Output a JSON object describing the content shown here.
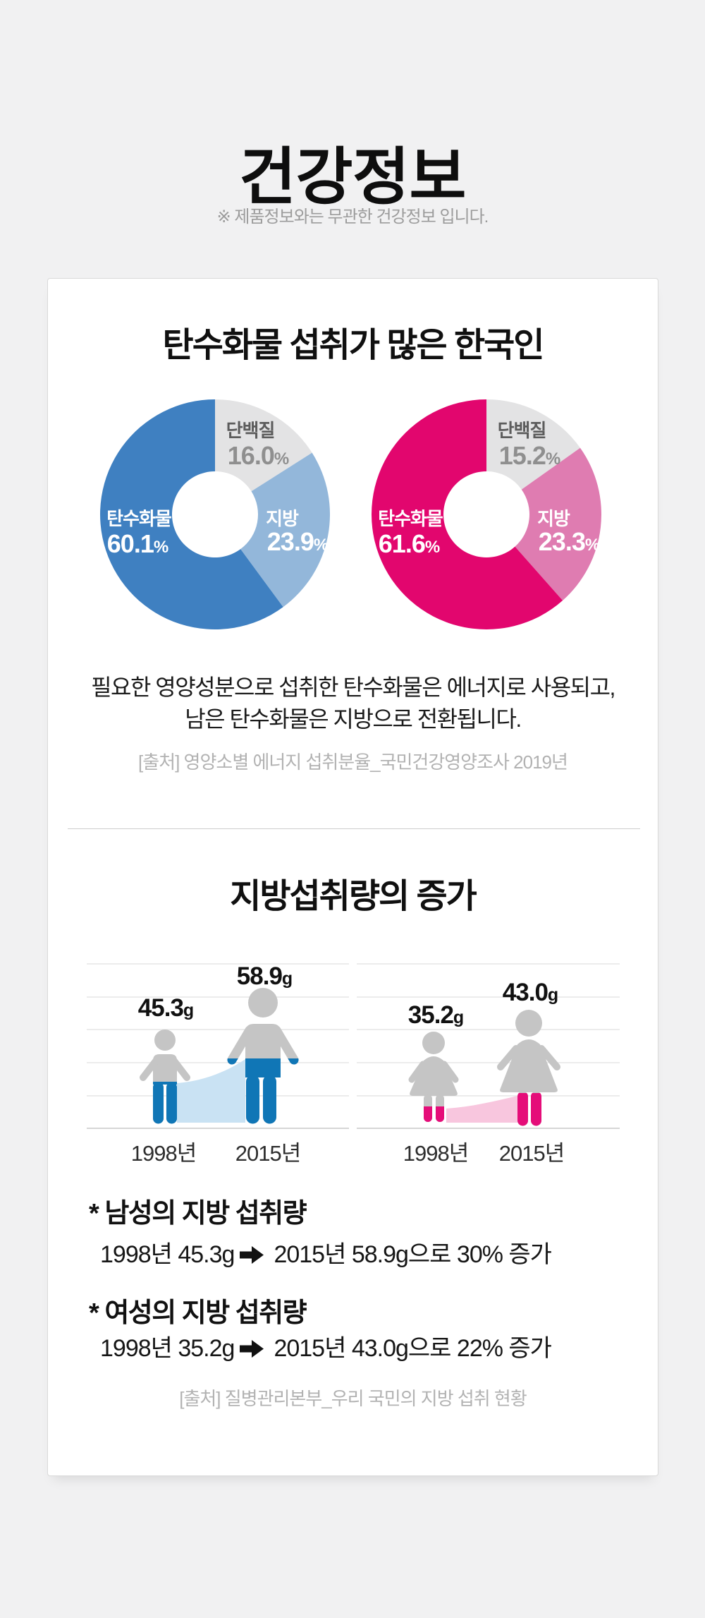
{
  "page": {
    "title": "건강정보",
    "disclaimer": "※ 제품정보와는 무관한 건강정보 입니다."
  },
  "section1": {
    "title": "탄수화물 섭취가 많은 한국인",
    "desc1": "필요한 영양성분으로 섭취한 탄수화물은 에너지로 사용되고,",
    "desc2": "남은 탄수화물은 지방으로 전환됩니다.",
    "source": "[출처] 영양소별 에너지 섭취분율_국민건강영양조사 2019년"
  },
  "section2": {
    "title": "지방섭취량의 증가",
    "notes": [
      {
        "title": "* 남성의 지방 섭취량",
        "from": "1998년 45.3g",
        "to": "2015년 58.9g으로 30% 증가"
      },
      {
        "title": "* 여성의 지방 섭취량",
        "from": "1998년 35.2g",
        "to": "2015년 43.0g으로 22% 증가"
      }
    ],
    "source": "[출처] 질병관리본부_우리 국민의 지방 섭취 현황"
  },
  "chart_data": [
    {
      "type": "donut",
      "palette": "blue",
      "unit": "%",
      "segments": [
        {
          "label": "단백질",
          "value": 16.0,
          "color": "#e3e3e4"
        },
        {
          "label": "지방",
          "value": 23.9,
          "color": "#93b7da"
        },
        {
          "label": "탄수화물",
          "value": 60.1,
          "color": "#3f80c1"
        }
      ]
    },
    {
      "type": "donut",
      "palette": "pink",
      "unit": "%",
      "segments": [
        {
          "label": "단백질",
          "value": 15.2,
          "color": "#e3e3e4"
        },
        {
          "label": "지방",
          "value": 23.3,
          "color": "#df7cb1"
        },
        {
          "label": "탄수화물",
          "value": 61.6,
          "color": "#e2066e"
        }
      ]
    },
    {
      "type": "pictogram-area",
      "group": "남성",
      "x": [
        "1998년",
        "2015년"
      ],
      "values": [
        45.3,
        58.9
      ],
      "unit": "g",
      "change": "30% 증가"
    },
    {
      "type": "pictogram-area",
      "group": "여성",
      "x": [
        "1998년",
        "2015년"
      ],
      "values": [
        35.2,
        43.0
      ],
      "unit": "g",
      "change": "22% 증가"
    }
  ]
}
